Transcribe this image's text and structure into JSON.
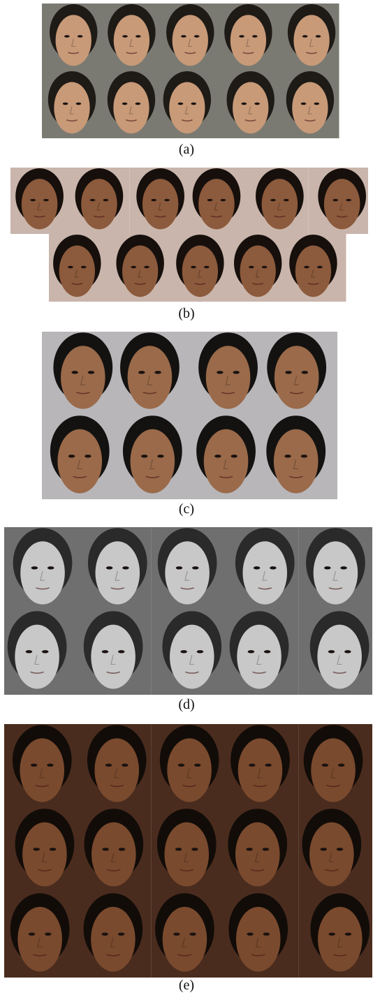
{
  "figure": {
    "panels": [
      {
        "id": "a",
        "caption": "(a)",
        "rows": [
          5,
          5
        ],
        "background": "#7a7a72",
        "skin": "#c89a78",
        "hair": "#1e1a16"
      },
      {
        "id": "b",
        "caption": "(b)",
        "rows": [
          6,
          5
        ],
        "background": "#c9b5ab",
        "skin": "#8c5a3c",
        "hair": "#160f0c"
      },
      {
        "id": "c",
        "caption": "(c)",
        "rows": [
          4,
          4
        ],
        "background": "#b8b6b9",
        "skin": "#9a6a4a",
        "hair": "#141210"
      },
      {
        "id": "d",
        "caption": "(d)",
        "rows": [
          5,
          5
        ],
        "background": "#6f6f6f",
        "skin": "#c8c8c8",
        "hair": "#2a2a2a"
      },
      {
        "id": "e",
        "caption": "(e)",
        "rows": [
          5,
          5,
          5
        ],
        "background": "#4a2c1e",
        "skin": "#7a4a2e",
        "hair": "#120c08"
      }
    ]
  }
}
